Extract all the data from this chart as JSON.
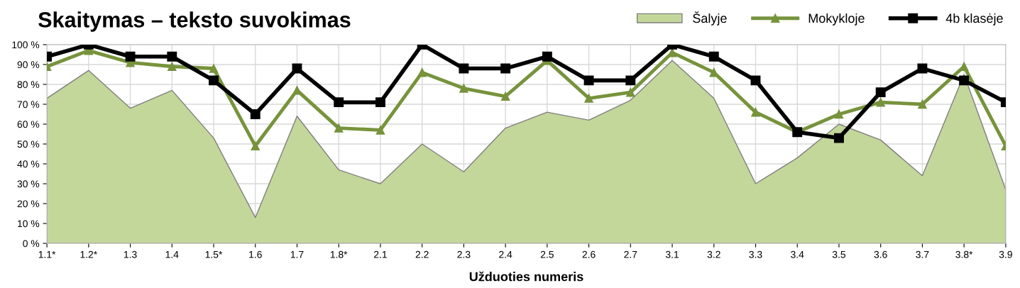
{
  "chart_data": {
    "type": "line",
    "title": "Skaitymas – teksto suvokimas",
    "xlabel": "Užduoties numeris",
    "categories": [
      "1.1*",
      "1.2*",
      "1.3",
      "1.4",
      "1.5*",
      "1.6",
      "1.7",
      "1.8*",
      "2.1",
      "2.2",
      "2.3",
      "2.4",
      "2.5",
      "2.6",
      "2.7",
      "3.1",
      "3.2",
      "3.3",
      "3.4",
      "3.5",
      "3.6",
      "3.7",
      "3.8*",
      "3.9"
    ],
    "series": [
      {
        "name": "Šalyje",
        "type": "area",
        "color": "#c4d79b",
        "values": [
          73,
          87,
          68,
          77,
          53,
          13,
          64,
          37,
          30,
          50,
          36,
          58,
          66,
          62,
          72,
          92,
          73,
          30,
          43,
          60,
          52,
          34,
          85,
          27
        ]
      },
      {
        "name": "Mokykloje",
        "marker": "triangle",
        "color": "#77933c",
        "values": [
          89,
          97,
          91,
          89,
          88,
          49,
          77,
          58,
          57,
          86,
          78,
          74,
          92,
          73,
          76,
          96,
          86,
          66,
          56,
          65,
          71,
          70,
          89,
          49
        ]
      },
      {
        "name": "4b klasėje",
        "marker": "square",
        "color": "#000000",
        "values": [
          94,
          100,
          94,
          94,
          82,
          65,
          88,
          71,
          71,
          100,
          88,
          88,
          94,
          82,
          82,
          100,
          94,
          82,
          56,
          53,
          76,
          88,
          82,
          71
        ]
      }
    ],
    "ylim": [
      0,
      100
    ],
    "yticks": [
      {
        "value": 0,
        "label": "0 %"
      },
      {
        "value": 10,
        "label": "10 %"
      },
      {
        "value": 20,
        "label": "20 %"
      },
      {
        "value": 30,
        "label": "30 %"
      },
      {
        "value": 40,
        "label": "40 %"
      },
      {
        "value": 50,
        "label": "50 %"
      },
      {
        "value": 60,
        "label": "60 %"
      },
      {
        "value": 70,
        "label": "70 %"
      },
      {
        "value": 80,
        "label": "80 %"
      },
      {
        "value": 90,
        "label": "90 %"
      },
      {
        "value": 100,
        "label": "100 %"
      }
    ],
    "grid": true,
    "legend": "top right"
  }
}
